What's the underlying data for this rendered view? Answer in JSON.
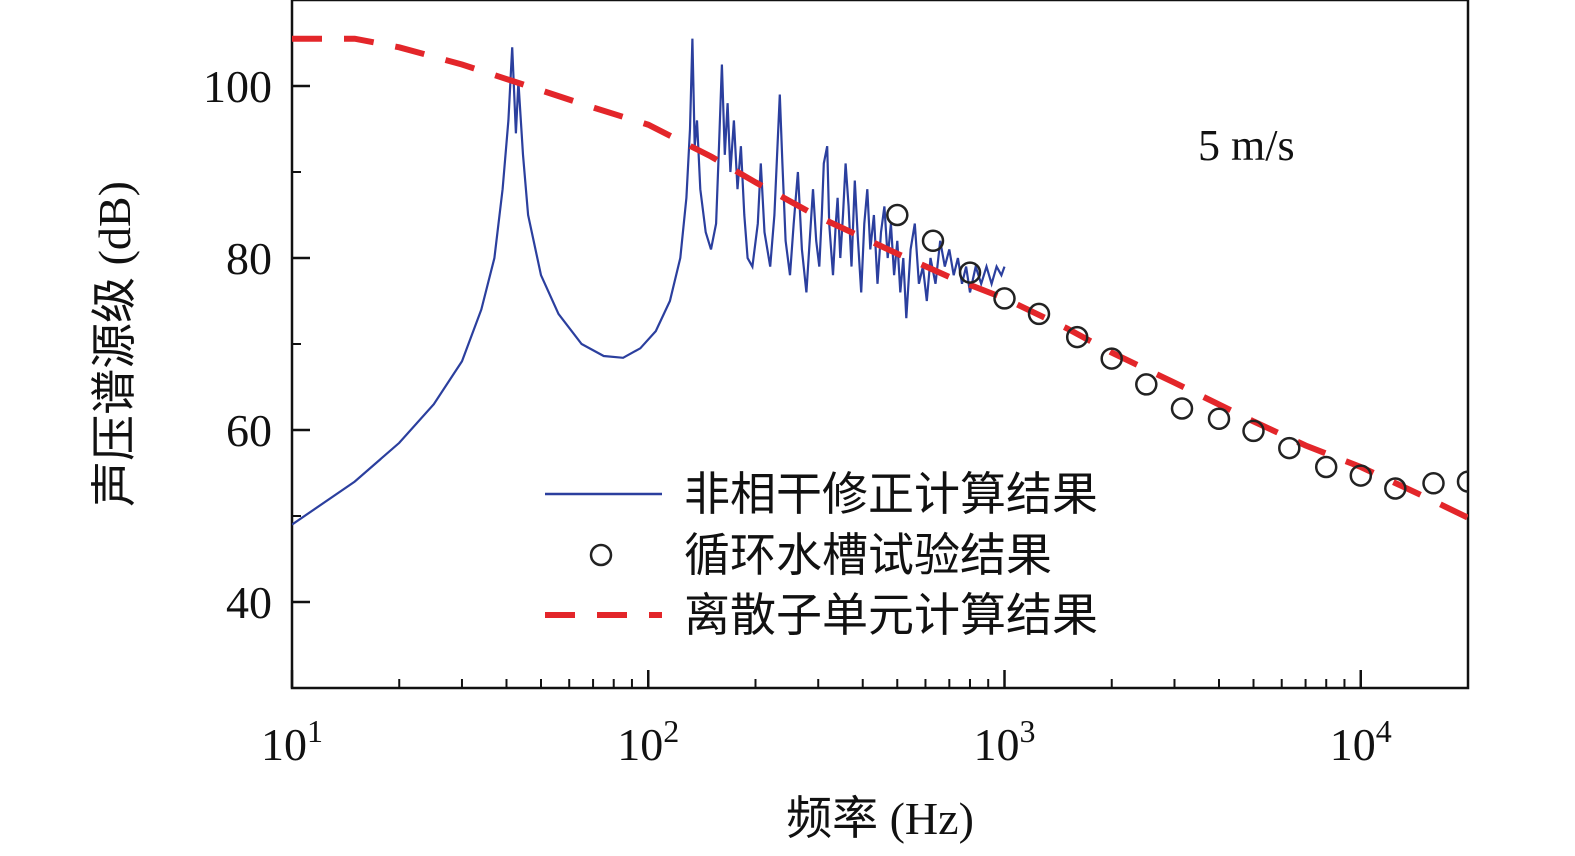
{
  "chart_data": {
    "type": "line",
    "xlabel": "频率 (Hz)",
    "ylabel": "声压谱源级 (dB)",
    "x_scale": "log",
    "xlim": [
      10,
      20000
    ],
    "ylim": [
      30,
      110
    ],
    "x_ticks": [
      {
        "value": 10,
        "base": "10",
        "exp": "1"
      },
      {
        "value": 100,
        "base": "10",
        "exp": "2"
      },
      {
        "value": 1000,
        "base": "10",
        "exp": "3"
      },
      {
        "value": 10000,
        "base": "10",
        "exp": "4"
      }
    ],
    "y_ticks": [
      {
        "value": 40,
        "label": "40"
      },
      {
        "value": 60,
        "label": "60"
      },
      {
        "value": 80,
        "label": "80"
      },
      {
        "value": 100,
        "label": "100"
      }
    ],
    "annotation": "5 m/s",
    "grid": false,
    "legend_position": "bottom-center",
    "series": [
      {
        "name": "非相干修正计算结果",
        "style": "solid",
        "color": "#2b3f9e",
        "points": [
          [
            10,
            49
          ],
          [
            15,
            54
          ],
          [
            20,
            58.5
          ],
          [
            25,
            63
          ],
          [
            30,
            68
          ],
          [
            34,
            74
          ],
          [
            37,
            80
          ],
          [
            39,
            88
          ],
          [
            40.5,
            96
          ],
          [
            41.5,
            104.5
          ],
          [
            42.5,
            94.5
          ],
          [
            43.2,
            100.5
          ],
          [
            44.5,
            92
          ],
          [
            46,
            85
          ],
          [
            50,
            78
          ],
          [
            56,
            73.5
          ],
          [
            65,
            70
          ],
          [
            75,
            68.6
          ],
          [
            85,
            68.4
          ],
          [
            95,
            69.5
          ],
          [
            105,
            71.5
          ],
          [
            115,
            75
          ],
          [
            123,
            80
          ],
          [
            128,
            87
          ],
          [
            131,
            95
          ],
          [
            133,
            105.5
          ],
          [
            135,
            93
          ],
          [
            137,
            96
          ],
          [
            140,
            88
          ],
          [
            145,
            83
          ],
          [
            150,
            81
          ],
          [
            155,
            84
          ],
          [
            158,
            93
          ],
          [
            161,
            102.5
          ],
          [
            164,
            92
          ],
          [
            167,
            98
          ],
          [
            170,
            90
          ],
          [
            174,
            96
          ],
          [
            178,
            88
          ],
          [
            182,
            93
          ],
          [
            186,
            85
          ],
          [
            190,
            80
          ],
          [
            196,
            79
          ],
          [
            203,
            84
          ],
          [
            207,
            91
          ],
          [
            212,
            83
          ],
          [
            220,
            79
          ],
          [
            226,
            85
          ],
          [
            230,
            92
          ],
          [
            234,
            99
          ],
          [
            238,
            91
          ],
          [
            243,
            82
          ],
          [
            250,
            78
          ],
          [
            256,
            84
          ],
          [
            263,
            90
          ],
          [
            270,
            81
          ],
          [
            278,
            76
          ],
          [
            284,
            82
          ],
          [
            290,
            88
          ],
          [
            296,
            82
          ],
          [
            302,
            79
          ],
          [
            307,
            85
          ],
          [
            311,
            91
          ],
          [
            318,
            93
          ],
          [
            322,
            84
          ],
          [
            330,
            78
          ],
          [
            336,
            84
          ],
          [
            340,
            87
          ],
          [
            346,
            80
          ],
          [
            352,
            85
          ],
          [
            358,
            91
          ],
          [
            365,
            86
          ],
          [
            372,
            79
          ],
          [
            380,
            89
          ],
          [
            388,
            82
          ],
          [
            396,
            76
          ],
          [
            404,
            84
          ],
          [
            412,
            88
          ],
          [
            420,
            81
          ],
          [
            430,
            85
          ],
          [
            440,
            77
          ],
          [
            450,
            83
          ],
          [
            460,
            86
          ],
          [
            470,
            80
          ],
          [
            480,
            84
          ],
          [
            490,
            78
          ],
          [
            500,
            82
          ],
          [
            510,
            76
          ],
          [
            520,
            80
          ],
          [
            530,
            73
          ],
          [
            545,
            81
          ],
          [
            560,
            84
          ],
          [
            575,
            77
          ],
          [
            590,
            79
          ],
          [
            605,
            75
          ],
          [
            620,
            80
          ],
          [
            640,
            77
          ],
          [
            660,
            82
          ],
          [
            680,
            79
          ],
          [
            700,
            81
          ],
          [
            720,
            78
          ],
          [
            740,
            80
          ],
          [
            760,
            77
          ],
          [
            780,
            79
          ],
          [
            800,
            76
          ],
          [
            830,
            79
          ],
          [
            860,
            77
          ],
          [
            890,
            79
          ],
          [
            920,
            77
          ],
          [
            950,
            79
          ],
          [
            980,
            78
          ],
          [
            1000,
            79
          ]
        ]
      },
      {
        "name": "循环水槽试验结果",
        "style": "circle",
        "color": "#222222",
        "points": [
          [
            500,
            85
          ],
          [
            630,
            82
          ],
          [
            800,
            78.3
          ],
          [
            1000,
            75.3
          ],
          [
            1250,
            73.5
          ],
          [
            1600,
            70.8
          ],
          [
            2000,
            68.3
          ],
          [
            2500,
            65.3
          ],
          [
            3150,
            62.5
          ],
          [
            4000,
            61.3
          ],
          [
            5000,
            59.9
          ],
          [
            6300,
            57.9
          ],
          [
            8000,
            55.7
          ],
          [
            10000,
            54.7
          ],
          [
            12500,
            53.2
          ],
          [
            16000,
            53.8
          ],
          [
            20000,
            54.0
          ]
        ]
      },
      {
        "name": "离散子单元计算结果",
        "style": "dashed",
        "color": "#e3262a",
        "points": [
          [
            10,
            105.5
          ],
          [
            15,
            105.5
          ],
          [
            20,
            104.5
          ],
          [
            30,
            102.5
          ],
          [
            50,
            99.5
          ],
          [
            70,
            97.5
          ],
          [
            100,
            95.5
          ],
          [
            150,
            91.8
          ],
          [
            200,
            88.8
          ],
          [
            300,
            84.8
          ],
          [
            500,
            80.5
          ],
          [
            700,
            77.8
          ],
          [
            1000,
            75.3
          ],
          [
            1500,
            71.8
          ],
          [
            2000,
            69.0
          ],
          [
            3000,
            65.5
          ],
          [
            5000,
            61.0
          ],
          [
            7000,
            58.2
          ],
          [
            10000,
            55.7
          ],
          [
            15000,
            52.3
          ],
          [
            20000,
            49.8
          ]
        ]
      }
    ]
  }
}
